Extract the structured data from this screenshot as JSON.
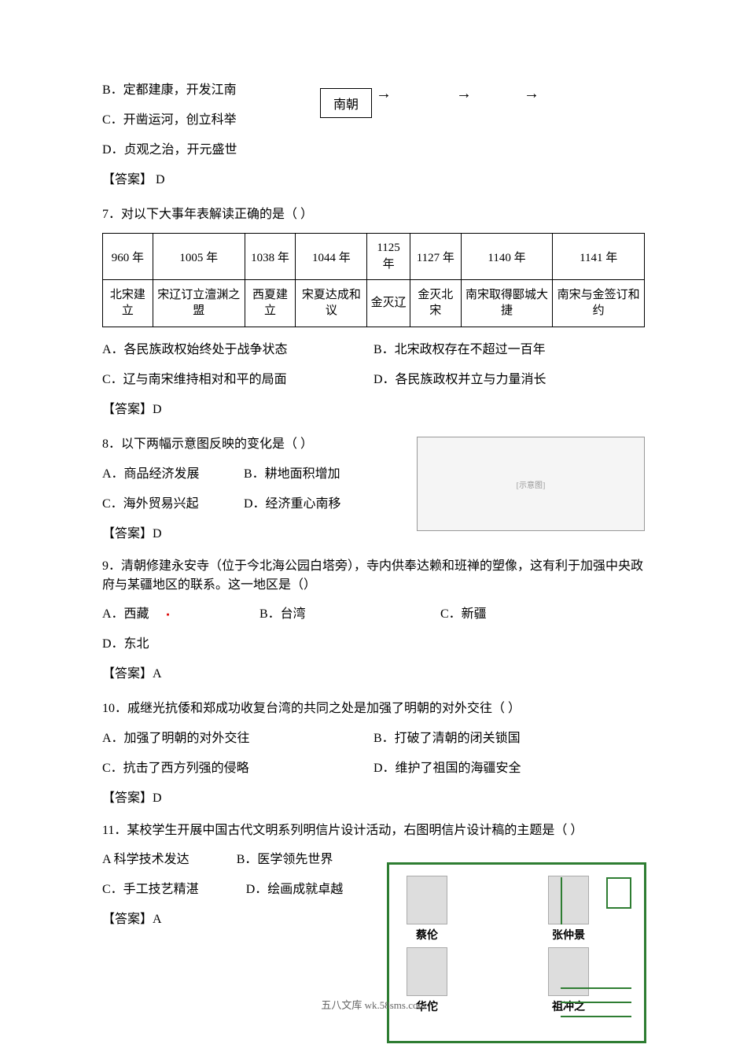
{
  "q6": {
    "option_b": "B．定都建康，开发江南",
    "option_c": "C．开凿运河，创立科举",
    "option_d": "D．贞观之治，开元盛世",
    "answer": "【答案】  D",
    "diagram_label": "南朝"
  },
  "q7": {
    "stem": "7．对以下大事年表解读正确的是（           ）",
    "years": [
      "960 年",
      "1005 年",
      "1038 年",
      "1044 年",
      "1125 年",
      "1127 年",
      "1140 年",
      "1141 年"
    ],
    "events": [
      "北宋建立",
      "宋辽订立澶渊之盟",
      "西夏建立",
      "宋夏达成和议",
      "金灭辽",
      "金灭北宋",
      "南宋取得郾城大捷",
      "南宋与金签订和约"
    ],
    "option_a": "A．各民族政权始终处于战争状态",
    "option_b": "B．北宋政权存在不超过一百年",
    "option_c": "C．辽与南宋维持相对和平的局面",
    "option_d": "D．各民族政权并立与力量消长",
    "answer": "【答案】D"
  },
  "q8": {
    "stem": "8．以下两幅示意图反映的变化是（            ）",
    "option_a": "A．商品经济发展",
    "option_b": "B．耕地面积增加",
    "option_c": "C．海外贸易兴起",
    "option_d": "D．经济重心南移",
    "answer": "【答案】D",
    "map_placeholder": "[示意图]"
  },
  "q9": {
    "stem": "9．清朝修建永安寺（位于今北海公园白塔旁），寺内供奉达赖和班禅的塑像，这有利于加强中央政府与某疆地区的联系。这一地区是（）",
    "option_a": "A．西藏",
    "option_b": "B．台湾",
    "option_c": "C．新疆",
    "option_d": "D．东北",
    "answer": "【答案】A"
  },
  "q10": {
    "stem": "10．戚继光抗倭和郑成功收复台湾的共同之处是加强了明朝的对外交往（       ）",
    "option_a": "A．加强了明朝的对外交往",
    "option_b": "B．打破了清朝的闭关锁国",
    "option_c": "C．抗击了西方列强的侵略",
    "option_d": "D．维护了祖国的海疆安全",
    "answer": "【答案】D"
  },
  "q11": {
    "stem": "11．某校学生开展中国古代文明系列明信片设计活动，右图明信片设计稿的主题是（    ）",
    "option_a": "A 科学技术发达",
    "option_b": "B．医学领先世界",
    "option_c": " C．手工技艺精湛",
    "option_d": "D．绘画成就卓越",
    "answer": "【答案】A",
    "figures": [
      "蔡伦",
      "张仲景",
      "华佗",
      "祖冲之"
    ]
  },
  "footer": "五八文库 wk.58sms.com",
  "arrows": "→"
}
